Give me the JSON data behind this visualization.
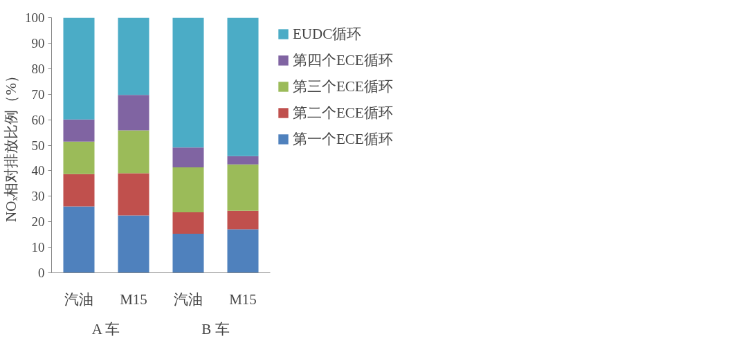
{
  "chart_data": {
    "type": "bar",
    "stacked": true,
    "ylabel": "NOₓ相对排放比例（%）",
    "categories": [
      "汽油",
      "M15",
      "汽油",
      "M15"
    ],
    "annotations": [
      "A 车",
      "B 车"
    ],
    "series": [
      {
        "name": "第一个ECE循环",
        "color": "#4f81bd",
        "values": [
          26.0,
          22.5,
          15.3,
          17.1
        ]
      },
      {
        "name": "第二个ECE循环",
        "color": "#c0504d",
        "values": [
          12.7,
          16.5,
          8.4,
          7.2
        ]
      },
      {
        "name": "第三个ECE循环",
        "color": "#9bbb59",
        "values": [
          12.7,
          16.8,
          17.6,
          18.2
        ]
      },
      {
        "name": "第四个ECE循环",
        "color": "#8064a2",
        "values": [
          8.7,
          13.9,
          7.8,
          3.2
        ]
      },
      {
        "name": "EUDC循环",
        "color": "#4bacc6",
        "values": [
          39.9,
          30.3,
          50.9,
          54.3
        ]
      }
    ],
    "ylim": [
      0,
      100
    ],
    "yticks": [
      0,
      10,
      20,
      30,
      40,
      50,
      60,
      70,
      80,
      90,
      100
    ],
    "grid": false,
    "legend": "right"
  }
}
